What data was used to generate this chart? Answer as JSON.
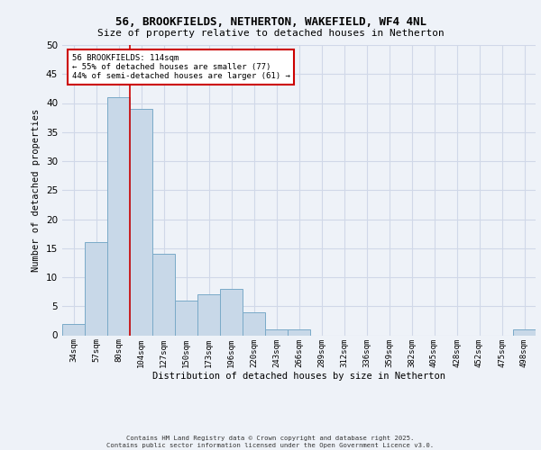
{
  "title_line1": "56, BROOKFIELDS, NETHERTON, WAKEFIELD, WF4 4NL",
  "title_line2": "Size of property relative to detached houses in Netherton",
  "xlabel": "Distribution of detached houses by size in Netherton",
  "ylabel": "Number of detached properties",
  "categories": [
    "34sqm",
    "57sqm",
    "80sqm",
    "104sqm",
    "127sqm",
    "150sqm",
    "173sqm",
    "196sqm",
    "220sqm",
    "243sqm",
    "266sqm",
    "289sqm",
    "312sqm",
    "336sqm",
    "359sqm",
    "382sqm",
    "405sqm",
    "428sqm",
    "452sqm",
    "475sqm",
    "498sqm"
  ],
  "values": [
    2,
    16,
    41,
    39,
    14,
    6,
    7,
    8,
    4,
    1,
    1,
    0,
    0,
    0,
    0,
    0,
    0,
    0,
    0,
    0,
    1
  ],
  "bar_color": "#c8d8e8",
  "bar_edge_color": "#7aaac8",
  "grid_color": "#d0d8e8",
  "background_color": "#eef2f8",
  "annotation_text": "56 BROOKFIELDS: 114sqm\n← 55% of detached houses are smaller (77)\n44% of semi-detached houses are larger (61) →",
  "annotation_box_color": "#ffffff",
  "annotation_box_edge": "#cc0000",
  "vline_color": "#cc0000",
  "ylim": [
    0,
    50
  ],
  "yticks": [
    0,
    5,
    10,
    15,
    20,
    25,
    30,
    35,
    40,
    45,
    50
  ],
  "footer_line1": "Contains HM Land Registry data © Crown copyright and database right 2025.",
  "footer_line2": "Contains public sector information licensed under the Open Government Licence v3.0."
}
